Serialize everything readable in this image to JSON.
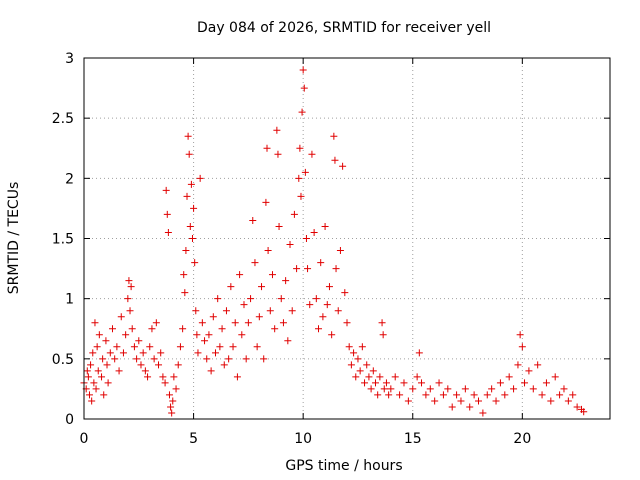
{
  "chart_data": {
    "type": "scatter",
    "title": "Day 084 of 2026, SRMTID for receiver yell",
    "xlabel": "GPS time / hours",
    "ylabel": "SRMTID / TECUs",
    "xlim": [
      0,
      24
    ],
    "ylim": [
      0,
      3
    ],
    "xticks": [
      0,
      5,
      10,
      15,
      20
    ],
    "yticks": [
      0,
      0.5,
      1,
      1.5,
      2,
      2.5,
      3
    ],
    "xtick_labels": [
      "0",
      "5",
      "10",
      "15",
      "20"
    ],
    "ytick_labels": [
      "0",
      "0.5",
      "1",
      "1.5",
      "2",
      "2.5",
      "3"
    ],
    "grid": true,
    "marker": "plus",
    "color": "#e00000",
    "series": [
      {
        "name": "SRMTID",
        "points": [
          [
            0.0,
            0.3
          ],
          [
            0.1,
            0.25
          ],
          [
            0.15,
            0.4
          ],
          [
            0.2,
            0.35
          ],
          [
            0.25,
            0.2
          ],
          [
            0.3,
            0.45
          ],
          [
            0.35,
            0.15
          ],
          [
            0.4,
            0.55
          ],
          [
            0.45,
            0.3
          ],
          [
            0.5,
            0.8
          ],
          [
            0.55,
            0.25
          ],
          [
            0.6,
            0.6
          ],
          [
            0.65,
            0.4
          ],
          [
            0.7,
            0.7
          ],
          [
            0.8,
            0.35
          ],
          [
            0.85,
            0.5
          ],
          [
            0.9,
            0.2
          ],
          [
            1.0,
            0.65
          ],
          [
            1.05,
            0.45
          ],
          [
            1.1,
            0.3
          ],
          [
            1.2,
            0.55
          ],
          [
            1.3,
            0.75
          ],
          [
            1.4,
            0.5
          ],
          [
            1.5,
            0.6
          ],
          [
            1.6,
            0.4
          ],
          [
            1.7,
            0.85
          ],
          [
            1.8,
            0.55
          ],
          [
            1.9,
            0.7
          ],
          [
            2.0,
            1.0
          ],
          [
            2.05,
            1.15
          ],
          [
            2.1,
            0.9
          ],
          [
            2.15,
            1.1
          ],
          [
            2.2,
            0.75
          ],
          [
            2.3,
            0.6
          ],
          [
            2.4,
            0.5
          ],
          [
            2.5,
            0.65
          ],
          [
            2.6,
            0.45
          ],
          [
            2.7,
            0.55
          ],
          [
            2.8,
            0.4
          ],
          [
            2.9,
            0.35
          ],
          [
            3.0,
            0.6
          ],
          [
            3.1,
            0.75
          ],
          [
            3.2,
            0.5
          ],
          [
            3.3,
            0.8
          ],
          [
            3.4,
            0.45
          ],
          [
            3.5,
            0.55
          ],
          [
            3.6,
            0.35
          ],
          [
            3.7,
            0.3
          ],
          [
            3.75,
            1.9
          ],
          [
            3.8,
            1.7
          ],
          [
            3.85,
            1.55
          ],
          [
            3.9,
            0.2
          ],
          [
            3.95,
            0.1
          ],
          [
            4.0,
            0.05
          ],
          [
            4.05,
            0.15
          ],
          [
            4.1,
            0.35
          ],
          [
            4.2,
            0.25
          ],
          [
            4.3,
            0.45
          ],
          [
            4.4,
            0.6
          ],
          [
            4.5,
            0.75
          ],
          [
            4.55,
            1.2
          ],
          [
            4.6,
            1.05
          ],
          [
            4.65,
            1.4
          ],
          [
            4.7,
            1.85
          ],
          [
            4.75,
            2.35
          ],
          [
            4.8,
            2.2
          ],
          [
            4.85,
            1.6
          ],
          [
            4.9,
            1.95
          ],
          [
            4.95,
            1.5
          ],
          [
            5.0,
            1.75
          ],
          [
            5.05,
            1.3
          ],
          [
            5.1,
            0.9
          ],
          [
            5.15,
            0.7
          ],
          [
            5.2,
            0.55
          ],
          [
            5.3,
            2.0
          ],
          [
            5.4,
            0.8
          ],
          [
            5.5,
            0.65
          ],
          [
            5.6,
            0.5
          ],
          [
            5.7,
            0.7
          ],
          [
            5.8,
            0.4
          ],
          [
            5.9,
            0.85
          ],
          [
            6.0,
            0.55
          ],
          [
            6.1,
            1.0
          ],
          [
            6.2,
            0.6
          ],
          [
            6.3,
            0.75
          ],
          [
            6.4,
            0.45
          ],
          [
            6.5,
            0.9
          ],
          [
            6.6,
            0.5
          ],
          [
            6.7,
            1.1
          ],
          [
            6.8,
            0.6
          ],
          [
            6.9,
            0.8
          ],
          [
            7.0,
            0.35
          ],
          [
            7.1,
            1.2
          ],
          [
            7.2,
            0.7
          ],
          [
            7.3,
            0.95
          ],
          [
            7.4,
            0.5
          ],
          [
            7.5,
            0.8
          ],
          [
            7.6,
            1.0
          ],
          [
            7.7,
            1.65
          ],
          [
            7.8,
            1.3
          ],
          [
            7.9,
            0.6
          ],
          [
            8.0,
            0.85
          ],
          [
            8.1,
            1.1
          ],
          [
            8.2,
            0.5
          ],
          [
            8.3,
            1.8
          ],
          [
            8.35,
            2.25
          ],
          [
            8.4,
            1.4
          ],
          [
            8.5,
            0.9
          ],
          [
            8.6,
            1.2
          ],
          [
            8.7,
            0.75
          ],
          [
            8.8,
            2.4
          ],
          [
            8.85,
            2.2
          ],
          [
            8.9,
            1.6
          ],
          [
            9.0,
            1.0
          ],
          [
            9.1,
            0.8
          ],
          [
            9.2,
            1.15
          ],
          [
            9.3,
            0.65
          ],
          [
            9.4,
            1.45
          ],
          [
            9.5,
            0.9
          ],
          [
            9.6,
            1.7
          ],
          [
            9.7,
            1.25
          ],
          [
            9.8,
            2.0
          ],
          [
            9.85,
            2.25
          ],
          [
            9.9,
            1.85
          ],
          [
            9.95,
            2.55
          ],
          [
            10.0,
            2.9
          ],
          [
            10.05,
            2.75
          ],
          [
            10.1,
            2.05
          ],
          [
            10.15,
            1.5
          ],
          [
            10.2,
            1.25
          ],
          [
            10.3,
            0.95
          ],
          [
            10.4,
            2.2
          ],
          [
            10.5,
            1.55
          ],
          [
            10.6,
            1.0
          ],
          [
            10.7,
            0.75
          ],
          [
            10.8,
            1.3
          ],
          [
            10.9,
            0.85
          ],
          [
            11.0,
            1.6
          ],
          [
            11.1,
            0.95
          ],
          [
            11.2,
            1.1
          ],
          [
            11.3,
            0.7
          ],
          [
            11.4,
            2.35
          ],
          [
            11.45,
            2.15
          ],
          [
            11.5,
            1.25
          ],
          [
            11.6,
            0.9
          ],
          [
            11.7,
            1.4
          ],
          [
            11.8,
            2.1
          ],
          [
            11.9,
            1.05
          ],
          [
            12.0,
            0.8
          ],
          [
            12.1,
            0.6
          ],
          [
            12.2,
            0.45
          ],
          [
            12.3,
            0.55
          ],
          [
            12.4,
            0.35
          ],
          [
            12.5,
            0.5
          ],
          [
            12.6,
            0.4
          ],
          [
            12.7,
            0.6
          ],
          [
            12.8,
            0.3
          ],
          [
            12.9,
            0.45
          ],
          [
            13.0,
            0.35
          ],
          [
            13.1,
            0.25
          ],
          [
            13.2,
            0.4
          ],
          [
            13.3,
            0.3
          ],
          [
            13.4,
            0.2
          ],
          [
            13.5,
            0.35
          ],
          [
            13.6,
            0.8
          ],
          [
            13.65,
            0.7
          ],
          [
            13.7,
            0.25
          ],
          [
            13.8,
            0.3
          ],
          [
            13.9,
            0.2
          ],
          [
            14.0,
            0.25
          ],
          [
            14.2,
            0.35
          ],
          [
            14.4,
            0.2
          ],
          [
            14.6,
            0.3
          ],
          [
            14.8,
            0.15
          ],
          [
            15.0,
            0.25
          ],
          [
            15.2,
            0.35
          ],
          [
            15.3,
            0.55
          ],
          [
            15.4,
            0.3
          ],
          [
            15.6,
            0.2
          ],
          [
            15.8,
            0.25
          ],
          [
            16.0,
            0.15
          ],
          [
            16.2,
            0.3
          ],
          [
            16.4,
            0.2
          ],
          [
            16.6,
            0.25
          ],
          [
            16.8,
            0.1
          ],
          [
            17.0,
            0.2
          ],
          [
            17.2,
            0.15
          ],
          [
            17.4,
            0.25
          ],
          [
            17.6,
            0.1
          ],
          [
            17.8,
            0.2
          ],
          [
            18.0,
            0.15
          ],
          [
            18.2,
            0.05
          ],
          [
            18.4,
            0.2
          ],
          [
            18.6,
            0.25
          ],
          [
            18.8,
            0.15
          ],
          [
            19.0,
            0.3
          ],
          [
            19.2,
            0.2
          ],
          [
            19.4,
            0.35
          ],
          [
            19.6,
            0.25
          ],
          [
            19.8,
            0.45
          ],
          [
            19.9,
            0.7
          ],
          [
            20.0,
            0.6
          ],
          [
            20.1,
            0.3
          ],
          [
            20.3,
            0.4
          ],
          [
            20.5,
            0.25
          ],
          [
            20.7,
            0.45
          ],
          [
            20.9,
            0.2
          ],
          [
            21.1,
            0.3
          ],
          [
            21.3,
            0.15
          ],
          [
            21.5,
            0.35
          ],
          [
            21.7,
            0.2
          ],
          [
            21.9,
            0.25
          ],
          [
            22.1,
            0.15
          ],
          [
            22.3,
            0.2
          ],
          [
            22.5,
            0.1
          ],
          [
            22.7,
            0.08
          ],
          [
            22.8,
            0.06
          ]
        ]
      }
    ]
  }
}
